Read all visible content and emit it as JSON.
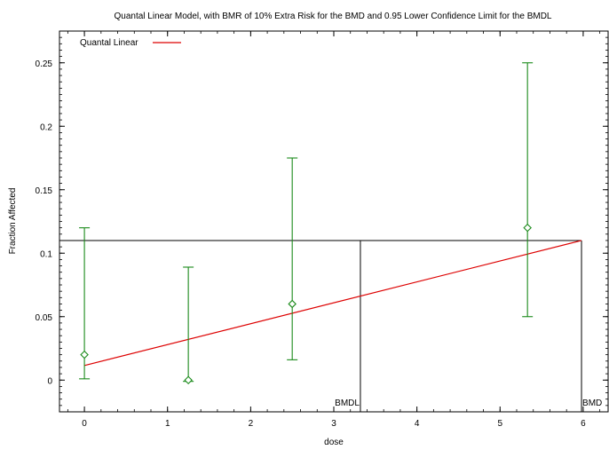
{
  "chart_data": {
    "type": "scatter",
    "title": "Quantal Linear Model, with BMR of 10% Extra Risk for the BMD and 0.95 Lower Confidence Limit for the BMDL",
    "xlabel": "dose",
    "ylabel": "Fraction Affected",
    "xlim": [
      -0.3,
      6.3
    ],
    "ylim": [
      -0.025,
      0.275
    ],
    "xticks": [
      0,
      1,
      2,
      3,
      4,
      5,
      6
    ],
    "yticks": [
      0,
      0.05,
      0.1,
      0.15,
      0.2,
      0.25
    ],
    "grid": false,
    "legend": {
      "position": "top-left",
      "entries": [
        {
          "name": "Quantal Linear",
          "color": "#dd0000"
        }
      ]
    },
    "observed": {
      "x": [
        0,
        1.25,
        2.5,
        5.33
      ],
      "y": [
        0.02,
        0.0,
        0.06,
        0.12
      ],
      "lower": [
        0.001,
        -0.001,
        0.016,
        0.05
      ],
      "upper": [
        0.12,
        0.089,
        0.175,
        0.25
      ],
      "color": "#1a8a1a",
      "marker": "diamond"
    },
    "model_line": {
      "name": "Quantal Linear",
      "x": [
        0,
        5.98
      ],
      "y": [
        0.0115,
        0.11
      ],
      "color": "#dd0000"
    },
    "bmr_level": 0.11,
    "bmdl": {
      "value": 3.32,
      "label": "BMDL"
    },
    "bmd": {
      "value": 5.98,
      "label": "BMD"
    }
  }
}
